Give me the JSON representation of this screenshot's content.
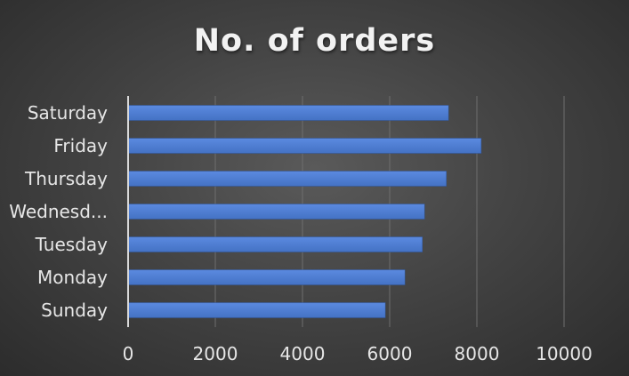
{
  "colors": {
    "bar": "#4472c4",
    "bar_highlight": "#5b8ae0",
    "gridline": "#6e6e6e",
    "axis": "#d9d9d9"
  },
  "chart_data": {
    "type": "bar",
    "orientation": "horizontal",
    "title": "No. of orders",
    "xlabel": "",
    "ylabel": "",
    "categories": [
      "Sunday",
      "Monday",
      "Tuesday",
      "Wednesd...",
      "Thursday",
      "Friday",
      "Saturday"
    ],
    "values": [
      5900,
      6350,
      6750,
      6800,
      7300,
      8100,
      7350
    ],
    "xlim": [
      0,
      10000
    ],
    "xticks": [
      "0",
      "2000",
      "4000",
      "6000",
      "8000",
      "10000"
    ],
    "grid": true,
    "legend": "none"
  }
}
